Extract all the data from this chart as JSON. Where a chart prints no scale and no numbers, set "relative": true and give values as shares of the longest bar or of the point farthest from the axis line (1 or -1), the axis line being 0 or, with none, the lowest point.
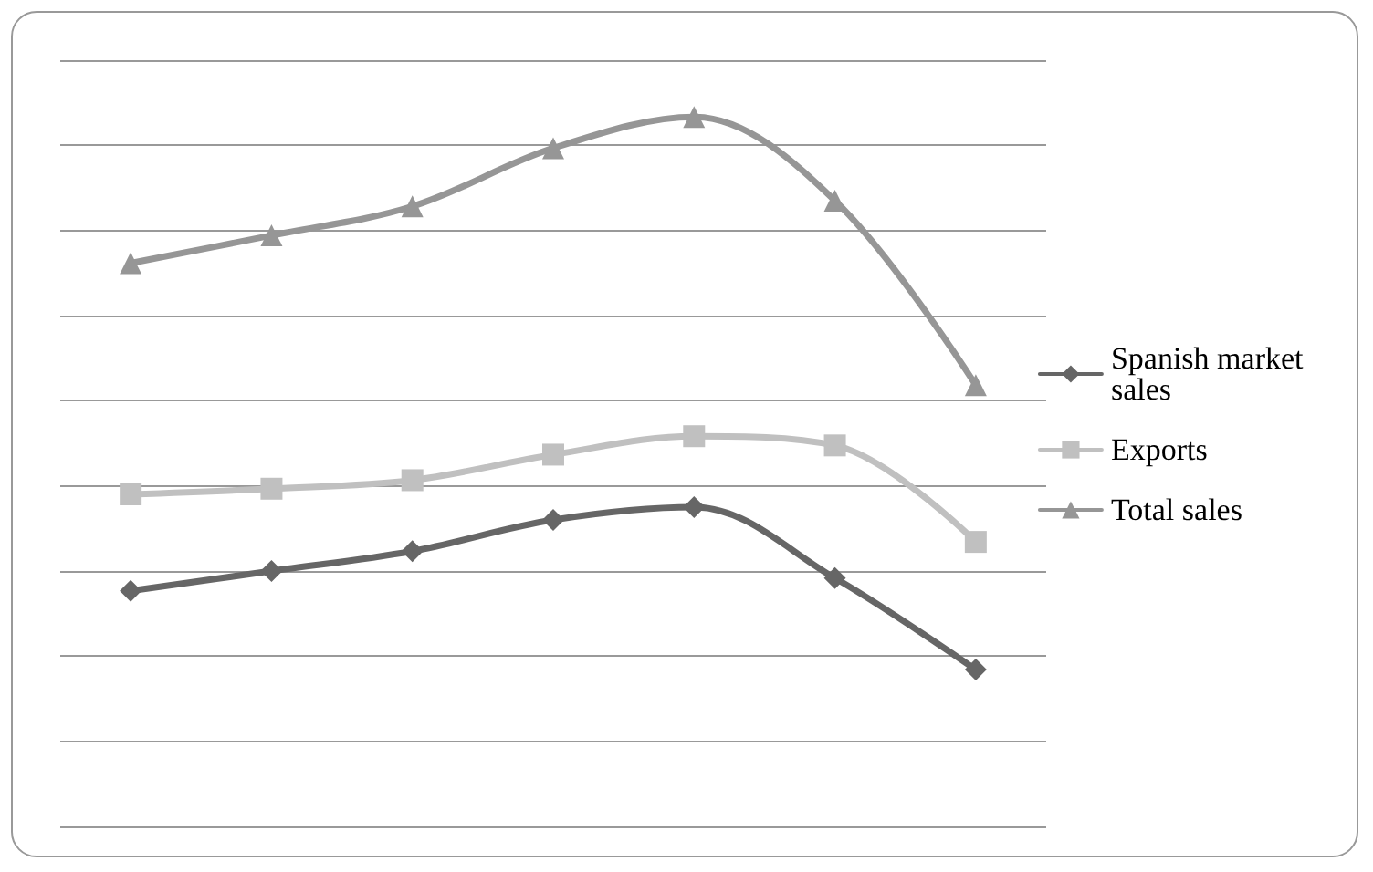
{
  "chart_data": {
    "type": "line",
    "relative": true,
    "categories": [
      null,
      null,
      null,
      null,
      null,
      null,
      null
    ],
    "series": [
      {
        "name": "Spanish market sales",
        "color": "#666666",
        "marker": "diamond",
        "values": [
          0.332,
          0.36,
          0.388,
          0.432,
          0.45,
          0.35,
          0.221
        ]
      },
      {
        "name": "Exports",
        "color": "#c0c0c0",
        "marker": "square",
        "values": [
          0.468,
          0.476,
          0.488,
          0.524,
          0.55,
          0.537,
          0.401
        ]
      },
      {
        "name": "Total sales",
        "color": "#969696",
        "marker": "triangle",
        "values": [
          0.794,
          0.833,
          0.874,
          0.956,
          1,
          0.882,
          0.622
        ]
      }
    ],
    "grid": "y",
    "legend": "right"
  }
}
